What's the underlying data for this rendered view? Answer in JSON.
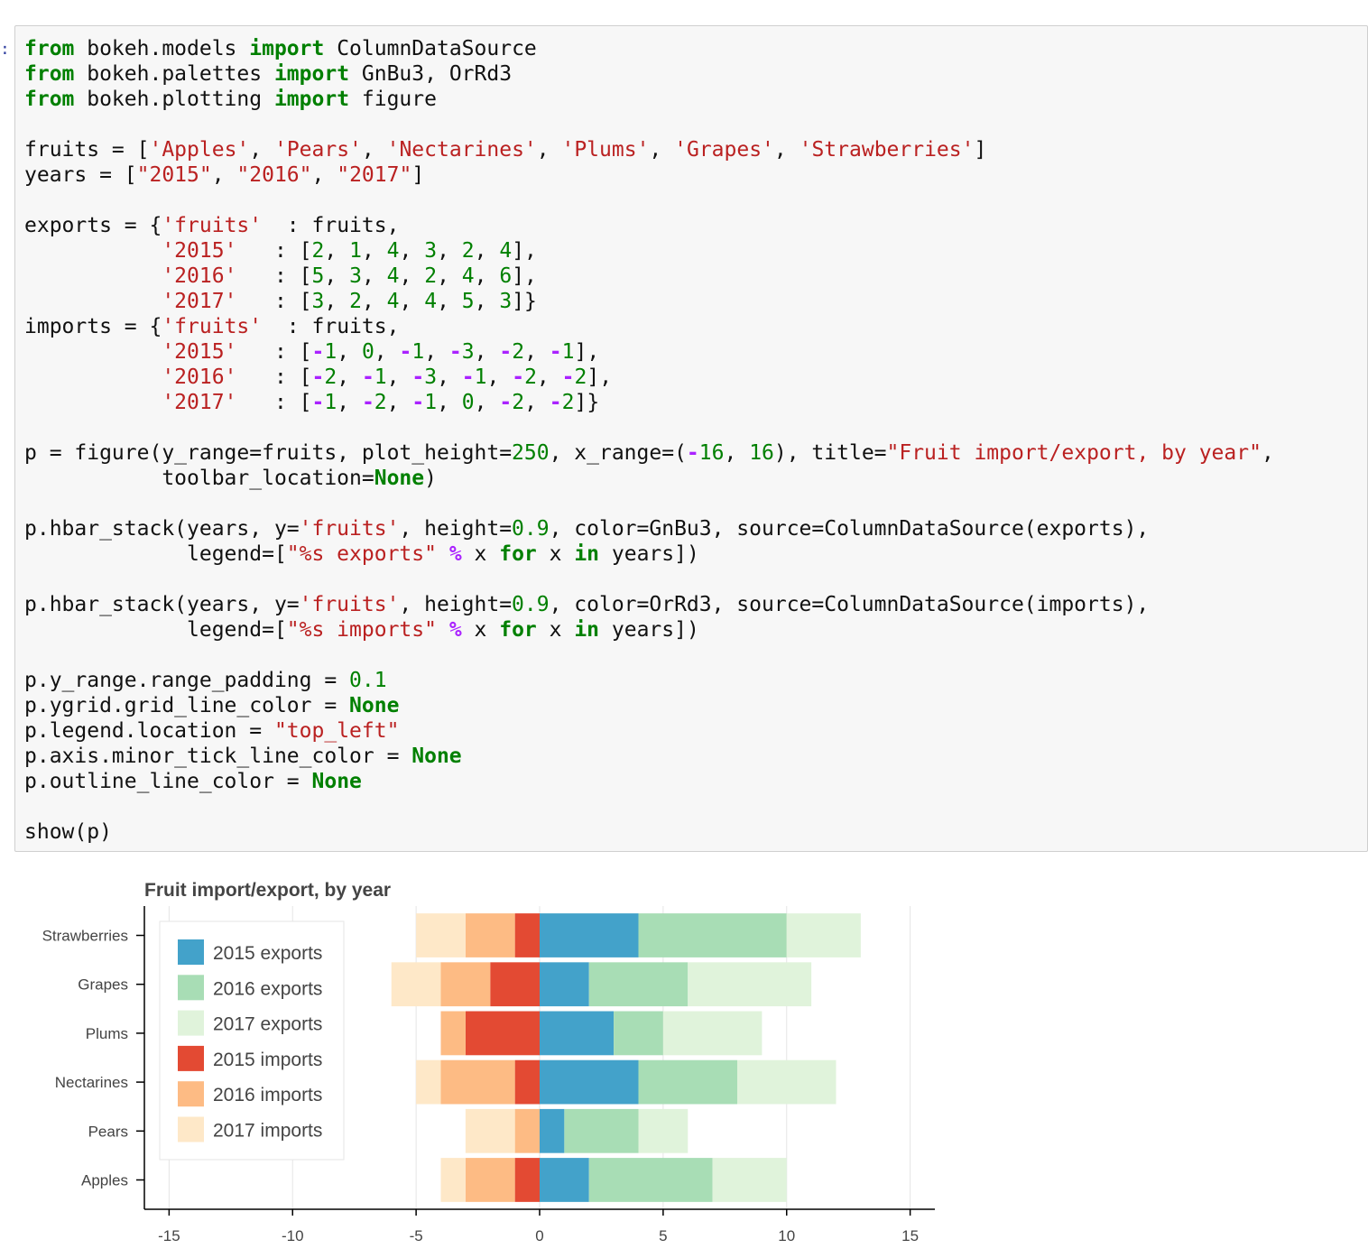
{
  "prompt_marker": ":",
  "code_lines": [
    [
      [
        "kw",
        "from"
      ],
      [
        "t",
        " bokeh.models "
      ],
      [
        "kw",
        "import"
      ],
      [
        "t",
        " ColumnDataSource"
      ]
    ],
    [
      [
        "kw",
        "from"
      ],
      [
        "t",
        " bokeh.palettes "
      ],
      [
        "kw",
        "import"
      ],
      [
        "t",
        " GnBu3, OrRd3"
      ]
    ],
    [
      [
        "kw",
        "from"
      ],
      [
        "t",
        " bokeh.plotting "
      ],
      [
        "kw",
        "import"
      ],
      [
        "t",
        " figure"
      ]
    ],
    [],
    [
      [
        "t",
        "fruits = ["
      ],
      [
        "str",
        "'Apples'"
      ],
      [
        "t",
        ", "
      ],
      [
        "str",
        "'Pears'"
      ],
      [
        "t",
        ", "
      ],
      [
        "str",
        "'Nectarines'"
      ],
      [
        "t",
        ", "
      ],
      [
        "str",
        "'Plums'"
      ],
      [
        "t",
        ", "
      ],
      [
        "str",
        "'Grapes'"
      ],
      [
        "t",
        ", "
      ],
      [
        "str",
        "'Strawberries'"
      ],
      [
        "t",
        "]"
      ]
    ],
    [
      [
        "t",
        "years = ["
      ],
      [
        "str",
        "\"2015\""
      ],
      [
        "t",
        ", "
      ],
      [
        "str",
        "\"2016\""
      ],
      [
        "t",
        ", "
      ],
      [
        "str",
        "\"2017\""
      ],
      [
        "t",
        "]"
      ]
    ],
    [],
    [
      [
        "t",
        "exports = {"
      ],
      [
        "str",
        "'fruits'"
      ],
      [
        "t",
        "  : fruits,"
      ]
    ],
    [
      [
        "t",
        "           "
      ],
      [
        "str",
        "'2015'"
      ],
      [
        "t",
        "   : ["
      ],
      [
        "num",
        "2"
      ],
      [
        "t",
        ", "
      ],
      [
        "num",
        "1"
      ],
      [
        "t",
        ", "
      ],
      [
        "num",
        "4"
      ],
      [
        "t",
        ", "
      ],
      [
        "num",
        "3"
      ],
      [
        "t",
        ", "
      ],
      [
        "num",
        "2"
      ],
      [
        "t",
        ", "
      ],
      [
        "num",
        "4"
      ],
      [
        "t",
        "],"
      ]
    ],
    [
      [
        "t",
        "           "
      ],
      [
        "str",
        "'2016'"
      ],
      [
        "t",
        "   : ["
      ],
      [
        "num",
        "5"
      ],
      [
        "t",
        ", "
      ],
      [
        "num",
        "3"
      ],
      [
        "t",
        ", "
      ],
      [
        "num",
        "4"
      ],
      [
        "t",
        ", "
      ],
      [
        "num",
        "2"
      ],
      [
        "t",
        ", "
      ],
      [
        "num",
        "4"
      ],
      [
        "t",
        ", "
      ],
      [
        "num",
        "6"
      ],
      [
        "t",
        "],"
      ]
    ],
    [
      [
        "t",
        "           "
      ],
      [
        "str",
        "'2017'"
      ],
      [
        "t",
        "   : ["
      ],
      [
        "num",
        "3"
      ],
      [
        "t",
        ", "
      ],
      [
        "num",
        "2"
      ],
      [
        "t",
        ", "
      ],
      [
        "num",
        "4"
      ],
      [
        "t",
        ", "
      ],
      [
        "num",
        "4"
      ],
      [
        "t",
        ", "
      ],
      [
        "num",
        "5"
      ],
      [
        "t",
        ", "
      ],
      [
        "num",
        "3"
      ],
      [
        "t",
        "]}"
      ]
    ],
    [
      [
        "t",
        "imports = {"
      ],
      [
        "str",
        "'fruits'"
      ],
      [
        "t",
        "  : fruits,"
      ]
    ],
    [
      [
        "t",
        "           "
      ],
      [
        "str",
        "'2015'"
      ],
      [
        "t",
        "   : ["
      ],
      [
        "op",
        "-"
      ],
      [
        "num",
        "1"
      ],
      [
        "t",
        ", "
      ],
      [
        "num",
        "0"
      ],
      [
        "t",
        ", "
      ],
      [
        "op",
        "-"
      ],
      [
        "num",
        "1"
      ],
      [
        "t",
        ", "
      ],
      [
        "op",
        "-"
      ],
      [
        "num",
        "3"
      ],
      [
        "t",
        ", "
      ],
      [
        "op",
        "-"
      ],
      [
        "num",
        "2"
      ],
      [
        "t",
        ", "
      ],
      [
        "op",
        "-"
      ],
      [
        "num",
        "1"
      ],
      [
        "t",
        "],"
      ]
    ],
    [
      [
        "t",
        "           "
      ],
      [
        "str",
        "'2016'"
      ],
      [
        "t",
        "   : ["
      ],
      [
        "op",
        "-"
      ],
      [
        "num",
        "2"
      ],
      [
        "t",
        ", "
      ],
      [
        "op",
        "-"
      ],
      [
        "num",
        "1"
      ],
      [
        "t",
        ", "
      ],
      [
        "op",
        "-"
      ],
      [
        "num",
        "3"
      ],
      [
        "t",
        ", "
      ],
      [
        "op",
        "-"
      ],
      [
        "num",
        "1"
      ],
      [
        "t",
        ", "
      ],
      [
        "op",
        "-"
      ],
      [
        "num",
        "2"
      ],
      [
        "t",
        ", "
      ],
      [
        "op",
        "-"
      ],
      [
        "num",
        "2"
      ],
      [
        "t",
        "],"
      ]
    ],
    [
      [
        "t",
        "           "
      ],
      [
        "str",
        "'2017'"
      ],
      [
        "t",
        "   : ["
      ],
      [
        "op",
        "-"
      ],
      [
        "num",
        "1"
      ],
      [
        "t",
        ", "
      ],
      [
        "op",
        "-"
      ],
      [
        "num",
        "2"
      ],
      [
        "t",
        ", "
      ],
      [
        "op",
        "-"
      ],
      [
        "num",
        "1"
      ],
      [
        "t",
        ", "
      ],
      [
        "num",
        "0"
      ],
      [
        "t",
        ", "
      ],
      [
        "op",
        "-"
      ],
      [
        "num",
        "2"
      ],
      [
        "t",
        ", "
      ],
      [
        "op",
        "-"
      ],
      [
        "num",
        "2"
      ],
      [
        "t",
        "]}"
      ]
    ],
    [],
    [
      [
        "t",
        "p = figure(y_range=fruits, plot_height="
      ],
      [
        "num",
        "250"
      ],
      [
        "t",
        ", x_range=("
      ],
      [
        "op",
        "-"
      ],
      [
        "num",
        "16"
      ],
      [
        "t",
        ", "
      ],
      [
        "num",
        "16"
      ],
      [
        "t",
        "), title="
      ],
      [
        "str",
        "\"Fruit import/export, by year\""
      ],
      [
        "t",
        ","
      ]
    ],
    [
      [
        "t",
        "           toolbar_location="
      ],
      [
        "kw",
        "None"
      ],
      [
        "t",
        ")"
      ]
    ],
    [],
    [
      [
        "t",
        "p.hbar_stack(years, y="
      ],
      [
        "str",
        "'fruits'"
      ],
      [
        "t",
        ", height="
      ],
      [
        "num",
        "0.9"
      ],
      [
        "t",
        ", color=GnBu3, source=ColumnDataSource(exports),"
      ]
    ],
    [
      [
        "t",
        "             legend=["
      ],
      [
        "str",
        "\"%s exports\""
      ],
      [
        "t",
        " "
      ],
      [
        "op",
        "%"
      ],
      [
        "t",
        " x "
      ],
      [
        "kw",
        "for"
      ],
      [
        "t",
        " x "
      ],
      [
        "kw",
        "in"
      ],
      [
        "t",
        " years])"
      ]
    ],
    [],
    [
      [
        "t",
        "p.hbar_stack(years, y="
      ],
      [
        "str",
        "'fruits'"
      ],
      [
        "t",
        ", height="
      ],
      [
        "num",
        "0.9"
      ],
      [
        "t",
        ", color=OrRd3, source=ColumnDataSource(imports),"
      ]
    ],
    [
      [
        "t",
        "             legend=["
      ],
      [
        "str",
        "\"%s imports\""
      ],
      [
        "t",
        " "
      ],
      [
        "op",
        "%"
      ],
      [
        "t",
        " x "
      ],
      [
        "kw",
        "for"
      ],
      [
        "t",
        " x "
      ],
      [
        "kw",
        "in"
      ],
      [
        "t",
        " years])"
      ]
    ],
    [],
    [
      [
        "t",
        "p.y_range.range_padding = "
      ],
      [
        "num",
        "0.1"
      ]
    ],
    [
      [
        "t",
        "p.ygrid.grid_line_color = "
      ],
      [
        "kw",
        "None"
      ]
    ],
    [
      [
        "t",
        "p.legend.location = "
      ],
      [
        "str",
        "\"top_left\""
      ]
    ],
    [
      [
        "t",
        "p.axis.minor_tick_line_color = "
      ],
      [
        "kw",
        "None"
      ]
    ],
    [
      [
        "t",
        "p.outline_line_color = "
      ],
      [
        "kw",
        "None"
      ]
    ],
    [],
    [
      [
        "t",
        "show(p)"
      ]
    ]
  ],
  "chart_data": {
    "type": "bar",
    "orientation": "horizontal-stacked",
    "title": "Fruit import/export, by year",
    "categories": [
      "Apples",
      "Pears",
      "Nectarines",
      "Plums",
      "Grapes",
      "Strawberries"
    ],
    "xlim": [
      -16,
      16
    ],
    "xticks": [
      -15,
      -10,
      -5,
      0,
      5,
      10,
      15
    ],
    "xtick_labels": [
      "-15",
      "-10",
      "-5",
      "0",
      "5",
      "10",
      "15"
    ],
    "grid": "vertical only",
    "legend_position": "top-left",
    "series": [
      {
        "name": "2015 exports",
        "color": "#43a2ca",
        "values": [
          2,
          1,
          4,
          3,
          2,
          4
        ]
      },
      {
        "name": "2016 exports",
        "color": "#a8ddb5",
        "values": [
          5,
          3,
          4,
          2,
          4,
          6
        ]
      },
      {
        "name": "2017 exports",
        "color": "#e0f3db",
        "values": [
          3,
          2,
          4,
          4,
          5,
          3
        ]
      },
      {
        "name": "2015 imports",
        "color": "#e34a33",
        "values": [
          -1,
          0,
          -1,
          -3,
          -2,
          -1
        ]
      },
      {
        "name": "2016 imports",
        "color": "#fdbb84",
        "values": [
          -2,
          -1,
          -3,
          -1,
          -2,
          -2
        ]
      },
      {
        "name": "2017 imports",
        "color": "#fee8c8",
        "values": [
          -1,
          -2,
          -1,
          0,
          -2,
          -2
        ]
      }
    ]
  }
}
